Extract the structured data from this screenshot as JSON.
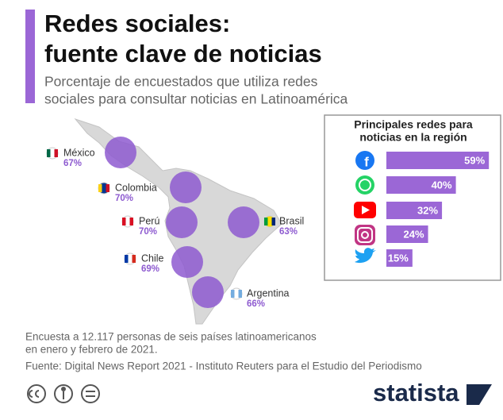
{
  "header": {
    "title_lines": [
      "Redes sociales:",
      "fuente clave de noticias"
    ],
    "subtitle_lines": [
      "Porcentaje de encuestados que utiliza redes",
      "sociales para consultar noticias en Latinoamérica"
    ]
  },
  "map": {
    "countries": [
      {
        "name": "México",
        "value": 67,
        "label": "67%"
      },
      {
        "name": "Colombia",
        "value": 70,
        "label": "70%"
      },
      {
        "name": "Perú",
        "value": 70,
        "label": "70%"
      },
      {
        "name": "Brasil",
        "value": 63,
        "label": "63%"
      },
      {
        "name": "Chile",
        "value": 69,
        "label": "69%"
      },
      {
        "name": "Argentina",
        "value": 66,
        "label": "66%"
      }
    ]
  },
  "chart_data": {
    "type": "bar",
    "orientation": "horizontal",
    "title_lines": [
      "Principales redes para",
      "noticias en la región"
    ],
    "categories": [
      null,
      null,
      null,
      null,
      null
    ],
    "values": [
      59,
      40,
      32,
      24,
      15
    ],
    "value_labels": [
      "59%",
      "40%",
      "32%",
      "24%",
      "15%"
    ],
    "color": "#9b67d6"
  },
  "footer": {
    "note_lines": [
      "Encuesta a 12.117 personas de seis países latinoamericanos",
      "en enero y febrero de 2021."
    ],
    "source": "Fuente: Digital News Report 2021 - Instituto Reuters para el Estudio del Periodismo",
    "logo": "statista"
  }
}
